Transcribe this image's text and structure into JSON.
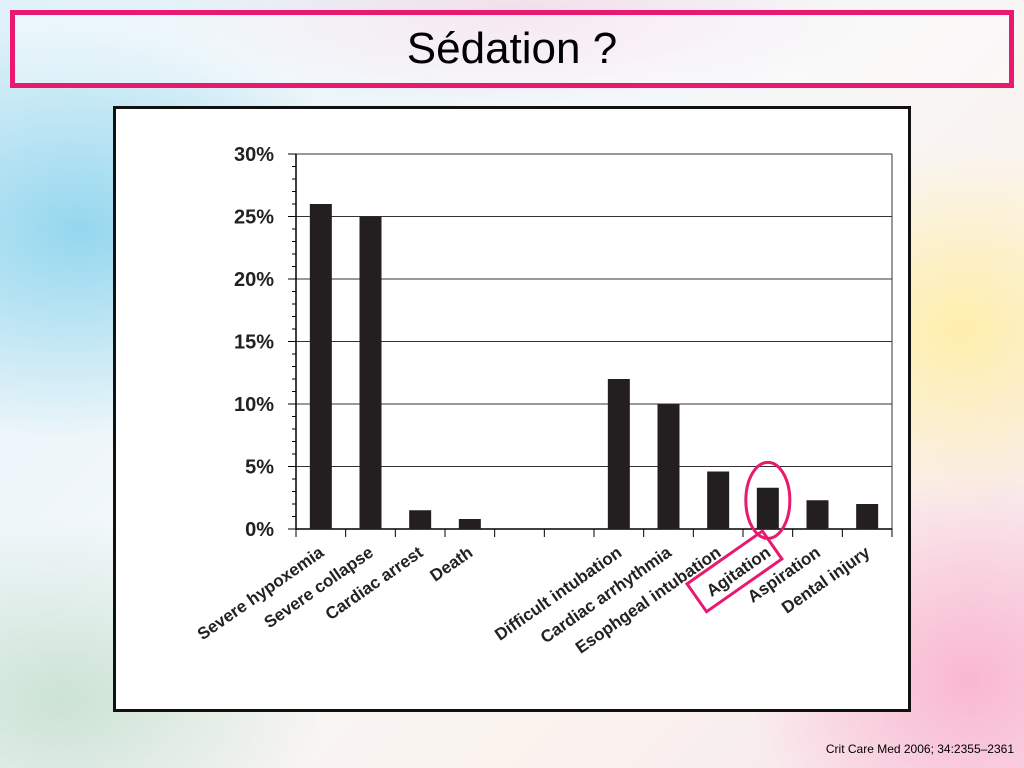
{
  "slide": {
    "title": "Sédation ?",
    "citation": "Crit Care Med 2006; 34:2355–2361"
  },
  "colors": {
    "accent": "#e8196f",
    "bar": "#231f20"
  },
  "chart_data": {
    "type": "bar",
    "title": "",
    "xlabel": "",
    "ylabel": "",
    "ylim": [
      0,
      30
    ],
    "y_ticks": [
      0,
      5,
      10,
      15,
      20,
      25,
      30
    ],
    "y_tick_labels": [
      "0%",
      "5%",
      "10%",
      "15%",
      "20%",
      "25%",
      "30%"
    ],
    "grid": "horizontal",
    "categories": [
      "Severe hypoxemia",
      "Severe collapse",
      "Cardiac arrest",
      "Death",
      "",
      "",
      "Difficult intubation",
      "Cardiac arrhythmia",
      "Esophgeal intubation",
      "Agitation",
      "Aspiration",
      "Dental injury"
    ],
    "values": [
      26,
      25,
      1.5,
      0.8,
      0,
      0,
      12,
      10,
      4.6,
      3.3,
      2.3,
      2.0
    ],
    "highlighted_category": "Agitation"
  }
}
